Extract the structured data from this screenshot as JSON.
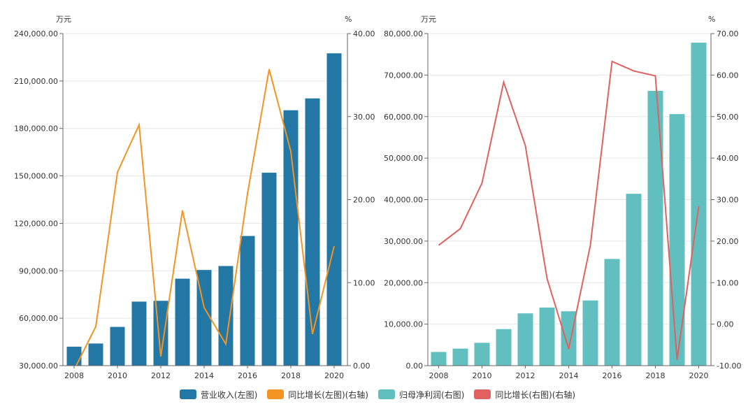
{
  "chart_data": [
    {
      "type": "bar+line",
      "x": [
        "2008",
        "2009",
        "2010",
        "2011",
        "2012",
        "2013",
        "2014",
        "2015",
        "2016",
        "2017",
        "2018",
        "2019",
        "2020"
      ],
      "x_tick_labels": [
        "2008",
        "2010",
        "2012",
        "2014",
        "2016",
        "2018",
        "2020"
      ],
      "left_axis": {
        "unit": "万元",
        "ylim": [
          30000,
          240000
        ],
        "ticks": [
          "30,000.00",
          "60,000.00",
          "90,000.00",
          "120,000.00",
          "150,000.00",
          "180,000.00",
          "210,000.00",
          "240,000.00"
        ]
      },
      "right_axis": {
        "unit": "%",
        "ylim": [
          0,
          40
        ],
        "ticks": [
          "0.00",
          "10.00",
          "20.00",
          "30.00",
          "40.00"
        ]
      },
      "series": [
        {
          "name": "营业收入(左图)",
          "type": "bar",
          "axis": "left",
          "color": "#2377a4",
          "values": [
            42000,
            44000,
            54500,
            70500,
            71000,
            85000,
            90500,
            93000,
            112000,
            152000,
            191500,
            199000,
            227500
          ]
        },
        {
          "name": "同比增长(左图)(右轴)",
          "type": "line",
          "axis": "right",
          "color": "#f39423",
          "values": [
            -0.5,
            4.7,
            23.3,
            29.0,
            1.1,
            18.7,
            7.0,
            2.6,
            20.7,
            35.7,
            25.8,
            3.8,
            14.4
          ]
        }
      ],
      "grid": true
    },
    {
      "type": "bar+line",
      "x": [
        "2008",
        "2009",
        "2010",
        "2011",
        "2012",
        "2013",
        "2014",
        "2015",
        "2016",
        "2017",
        "2018",
        "2019",
        "2020"
      ],
      "x_tick_labels": [
        "2008",
        "2010",
        "2012",
        "2014",
        "2016",
        "2018",
        "2020"
      ],
      "left_axis": {
        "unit": "万元",
        "ylim": [
          0,
          80000
        ],
        "ticks": [
          "0.00",
          "10,000.00",
          "20,000.00",
          "30,000.00",
          "40,000.00",
          "50,000.00",
          "60,000.00",
          "70,000.00",
          "80,000.00"
        ]
      },
      "right_axis": {
        "unit": "%",
        "ylim": [
          -10,
          70
        ],
        "ticks": [
          "-10.00",
          "0.00",
          "10.00",
          "20.00",
          "30.00",
          "40.00",
          "50.00",
          "60.00",
          "70.00"
        ]
      },
      "series": [
        {
          "name": "归母净利润(右图)",
          "type": "bar",
          "axis": "left",
          "color": "#61bfbf",
          "values": [
            3300,
            4100,
            5500,
            8800,
            12600,
            14000,
            13100,
            15700,
            25700,
            41400,
            66200,
            60600,
            77800
          ]
        },
        {
          "name": "同比增长(右图)(右轴)",
          "type": "line",
          "axis": "right",
          "color": "#e0615f",
          "values": [
            19.0,
            23.0,
            34.0,
            58.3,
            43.0,
            11.0,
            -6.0,
            19.0,
            63.3,
            61.0,
            59.8,
            -8.6,
            28.4
          ]
        }
      ],
      "grid": true
    }
  ]
}
